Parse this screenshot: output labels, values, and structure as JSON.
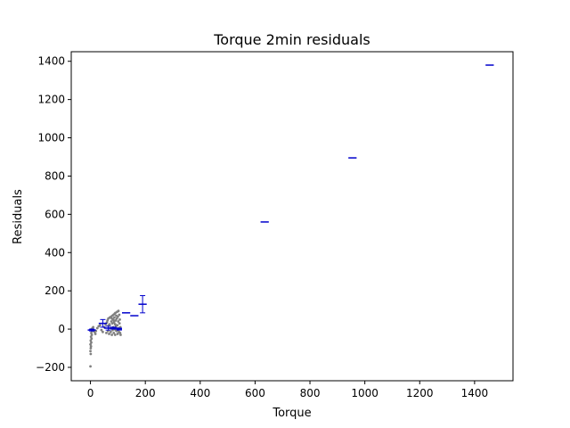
{
  "chart_data": {
    "type": "scatter",
    "title": "Torque 2min residuals",
    "xlabel": "Torque",
    "ylabel": "Residuals",
    "xlim": [
      -70,
      1540
    ],
    "ylim": [
      -270,
      1450
    ],
    "xticks": [
      0,
      200,
      400,
      600,
      800,
      1000,
      1200,
      1400
    ],
    "yticks": [
      -200,
      0,
      200,
      400,
      600,
      800,
      1000,
      1200,
      1400
    ],
    "xtick_labels": [
      "0",
      "200",
      "400",
      "600",
      "800",
      "1000",
      "1200",
      "1400"
    ],
    "ytick_labels": [
      "−200",
      "0",
      "200",
      "400",
      "600",
      "800",
      "1000",
      "1200",
      "1400"
    ],
    "grid": false,
    "colors": {
      "points": "#808080",
      "binned": "#0000cc",
      "axes": "#000000"
    },
    "series": [
      {
        "kind": "points",
        "points": [
          [
            0,
            -195
          ],
          [
            1,
            -130
          ],
          [
            0,
            -115
          ],
          [
            1,
            -100
          ],
          [
            2,
            -90
          ],
          [
            0,
            -80
          ],
          [
            3,
            -70
          ],
          [
            1,
            -60
          ],
          [
            4,
            -50
          ],
          [
            2,
            -40
          ],
          [
            5,
            -30
          ],
          [
            3,
            -20
          ],
          [
            6,
            -10
          ],
          [
            4,
            0
          ],
          [
            8,
            5
          ],
          [
            10,
            10
          ],
          [
            12,
            -5
          ],
          [
            15,
            -15
          ],
          [
            18,
            -25
          ],
          [
            20,
            -10
          ],
          [
            25,
            5
          ],
          [
            30,
            15
          ],
          [
            35,
            20
          ],
          [
            40,
            -5
          ],
          [
            45,
            -15
          ],
          [
            50,
            10
          ],
          [
            55,
            25
          ],
          [
            58,
            -20
          ],
          [
            60,
            35
          ],
          [
            62,
            45
          ],
          [
            64,
            -10
          ],
          [
            65,
            55
          ],
          [
            66,
            20
          ],
          [
            68,
            -25
          ],
          [
            70,
            60
          ],
          [
            72,
            5
          ],
          [
            74,
            -15
          ],
          [
            75,
            65
          ],
          [
            76,
            40
          ],
          [
            78,
            -30
          ],
          [
            80,
            70
          ],
          [
            80,
            30
          ],
          [
            81,
            -5
          ],
          [
            82,
            50
          ],
          [
            83,
            10
          ],
          [
            84,
            75
          ],
          [
            85,
            -20
          ],
          [
            86,
            35
          ],
          [
            87,
            60
          ],
          [
            88,
            80
          ],
          [
            89,
            0
          ],
          [
            90,
            25
          ],
          [
            90,
            -30
          ],
          [
            91,
            85
          ],
          [
            92,
            45
          ],
          [
            93,
            15
          ],
          [
            94,
            70
          ],
          [
            95,
            -10
          ],
          [
            96,
            55
          ],
          [
            97,
            90
          ],
          [
            98,
            20
          ],
          [
            99,
            -25
          ],
          [
            100,
            65
          ],
          [
            101,
            40
          ],
          [
            102,
            95
          ],
          [
            103,
            5
          ],
          [
            104,
            -15
          ],
          [
            105,
            75
          ],
          [
            106,
            30
          ],
          [
            107,
            50
          ],
          [
            108,
            -20
          ],
          [
            109,
            10
          ],
          [
            110,
            -30
          ],
          [
            70,
            25
          ],
          [
            78,
            55
          ],
          [
            85,
            45
          ],
          [
            92,
            -5
          ],
          [
            100,
            -5
          ]
        ]
      },
      {
        "kind": "binned",
        "bins": [
          {
            "x": 5,
            "y": -5,
            "err": 5,
            "w": 30
          },
          {
            "x": 45,
            "y": 30,
            "err": 20,
            "w": 30
          },
          {
            "x": 65,
            "y": 5,
            "err": 10,
            "w": 30
          },
          {
            "x": 85,
            "y": 5,
            "err": 5,
            "w": 30
          },
          {
            "x": 105,
            "y": 0,
            "err": 5,
            "w": 20
          },
          {
            "x": 130,
            "y": 85,
            "err": 0,
            "w": 30
          },
          {
            "x": 160,
            "y": 70,
            "err": 0,
            "w": 30
          },
          {
            "x": 190,
            "y": 130,
            "err": 45,
            "w": 30
          },
          {
            "x": 635,
            "y": 560,
            "err": 0,
            "w": 30
          },
          {
            "x": 955,
            "y": 895,
            "err": 0,
            "w": 30
          },
          {
            "x": 1455,
            "y": 1380,
            "err": 0,
            "w": 30
          }
        ]
      }
    ]
  }
}
